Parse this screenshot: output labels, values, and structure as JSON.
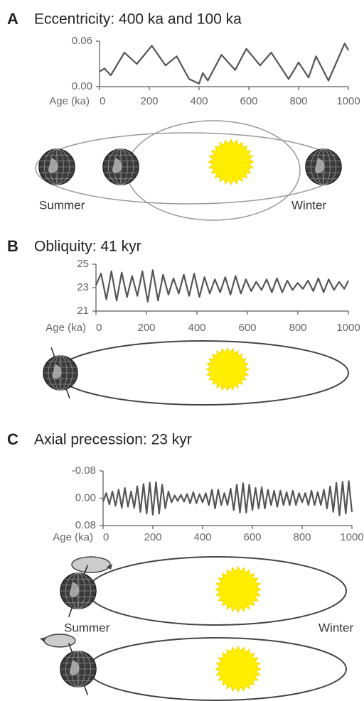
{
  "chart_data": [
    {
      "type": "line",
      "panel_label": "A",
      "title": "Eccentricity: 400 ka and 100 ka",
      "x_label": "Age (ka)",
      "annotations": [
        "Summer",
        "Winter"
      ],
      "color": "#555555",
      "x": [
        0,
        20,
        45,
        100,
        150,
        210,
        265,
        310,
        360,
        400,
        415,
        435,
        490,
        545,
        590,
        645,
        690,
        760,
        800,
        840,
        870,
        920,
        985,
        1000
      ],
      "values": [
        0.02,
        0.024,
        0.015,
        0.045,
        0.03,
        0.054,
        0.028,
        0.04,
        0.01,
        0.004,
        0.018,
        0.008,
        0.042,
        0.022,
        0.05,
        0.028,
        0.045,
        0.01,
        0.032,
        0.012,
        0.04,
        0.008,
        0.057,
        0.048
      ],
      "xlim": [
        0,
        1000
      ],
      "xticks": [
        0,
        200,
        400,
        600,
        800,
        1000
      ],
      "ylim": [
        0,
        0.06
      ],
      "yticks": [
        {
          "value": 0,
          "label": "0.00"
        },
        0.06
      ]
    },
    {
      "type": "line",
      "panel_label": "B",
      "title": "Obliquity: 41 kyr",
      "x_label": "Age (ka)",
      "color": "#555555",
      "x": [
        0,
        20,
        41,
        61,
        82,
        102,
        123,
        143,
        164,
        184,
        205,
        225,
        246,
        266,
        287,
        307,
        328,
        348,
        369,
        389,
        410,
        430,
        451,
        471,
        492,
        512,
        533,
        553,
        574,
        594,
        615,
        635,
        656,
        676,
        697,
        717,
        738,
        758,
        779,
        799,
        820,
        840,
        861,
        881,
        902,
        922,
        943,
        963,
        984,
        1000
      ],
      "values": [
        23.2,
        24.2,
        22.0,
        24.4,
        21.9,
        24.3,
        22.2,
        24.0,
        22.3,
        24.4,
        21.8,
        24.5,
        21.9,
        24.1,
        22.4,
        23.8,
        22.5,
        24.1,
        22.3,
        24.2,
        22.2,
        23.9,
        22.5,
        23.7,
        22.6,
        23.9,
        22.4,
        24.0,
        22.5,
        23.7,
        22.7,
        23.5,
        22.8,
        23.7,
        22.6,
        23.8,
        22.6,
        23.6,
        22.8,
        23.4,
        22.9,
        23.6,
        22.7,
        23.8,
        22.6,
        23.7,
        22.8,
        23.5,
        22.9,
        23.6
      ],
      "xlim": [
        0,
        1000
      ],
      "xticks": [
        0,
        200,
        400,
        600,
        800,
        1000
      ],
      "ylim": [
        21,
        25
      ],
      "yticks": [
        21,
        23,
        25
      ]
    },
    {
      "type": "line",
      "panel_label": "C",
      "title": "Axial precession: 23 kyr",
      "x_label": "Age (ka)",
      "annotations": [
        "Summer",
        "Winter"
      ],
      "color": "#555555",
      "x": [
        0,
        12.5,
        25,
        37.5,
        50,
        62.5,
        75,
        87.5,
        100,
        112.5,
        125,
        137.5,
        150,
        162.5,
        175,
        187.5,
        200,
        212.5,
        225,
        237.5,
        250,
        262.5,
        275,
        287.5,
        300,
        312.5,
        325,
        337.5,
        350,
        362.5,
        375,
        387.5,
        400,
        412.5,
        425,
        437.5,
        450,
        462.5,
        475,
        487.5,
        500,
        512.5,
        525,
        537.5,
        550,
        562.5,
        575,
        587.5,
        600,
        612.5,
        625,
        637.5,
        650,
        662.5,
        675,
        687.5,
        700,
        712.5,
        725,
        737.5,
        750,
        762.5,
        775,
        787.5,
        800,
        812.5,
        825,
        837.5,
        850,
        862.5,
        875,
        887.5,
        900,
        912.5,
        925,
        937.5,
        950,
        962.5,
        975,
        987.5,
        1000
      ],
      "values": [
        0.01,
        -0.015,
        0.018,
        -0.02,
        0.022,
        -0.025,
        0.028,
        -0.03,
        0.025,
        -0.02,
        0.028,
        -0.035,
        0.04,
        -0.042,
        0.045,
        -0.046,
        0.048,
        -0.047,
        0.045,
        -0.04,
        0.03,
        -0.02,
        0.012,
        -0.008,
        0.008,
        -0.01,
        0.01,
        -0.012,
        0.015,
        -0.018,
        0.015,
        -0.012,
        0.012,
        -0.015,
        0.02,
        -0.025,
        0.03,
        -0.025,
        0.02,
        -0.015,
        0.02,
        -0.028,
        0.035,
        -0.04,
        0.042,
        -0.044,
        0.042,
        -0.04,
        0.035,
        -0.03,
        0.03,
        -0.032,
        0.03,
        -0.025,
        0.02,
        -0.022,
        0.025,
        -0.022,
        0.02,
        -0.018,
        0.02,
        -0.022,
        0.02,
        -0.015,
        0.012,
        -0.015,
        0.02,
        -0.022,
        0.02,
        -0.018,
        0.02,
        -0.025,
        0.03,
        -0.035,
        0.04,
        -0.045,
        0.05,
        -0.048,
        0.045,
        -0.05,
        0.04
      ],
      "xlim": [
        0,
        1000
      ],
      "xticks": [
        0,
        200,
        400,
        600,
        800,
        1000
      ],
      "ylim": [
        0.08,
        -0.08
      ],
      "yticks": [
        -0.08,
        {
          "value": 0,
          "label": "0.00"
        },
        0.08
      ]
    }
  ]
}
